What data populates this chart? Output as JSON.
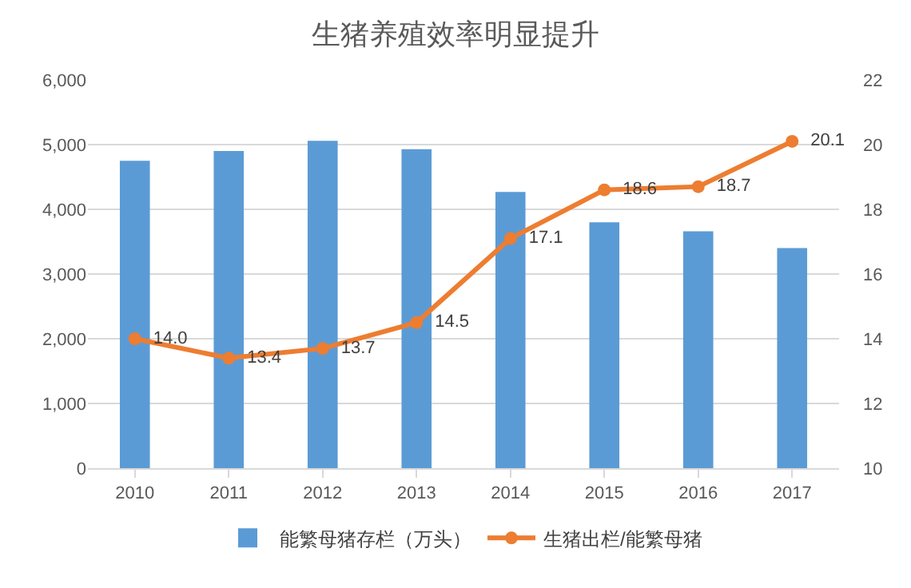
{
  "chart_data": {
    "type": "bar",
    "title": "生猪养殖效率明显提升",
    "categories": [
      "2010",
      "2011",
      "2012",
      "2013",
      "2014",
      "2015",
      "2016",
      "2017"
    ],
    "series": [
      {
        "name": "能繁母猪存栏（万头）",
        "color": "#5b9bd5",
        "values": [
          4750,
          4900,
          5060,
          4930,
          4270,
          3800,
          3660,
          3400
        ]
      },
      {
        "name": "生猪出栏/能繁母猪",
        "type": "line",
        "axis": "y2",
        "color": "#ed7d31",
        "marker": "circle",
        "values": [
          14.0,
          13.4,
          13.7,
          14.5,
          17.1,
          18.6,
          18.7,
          20.1
        ],
        "value_labels": [
          "14.0",
          "13.4",
          "13.7",
          "14.5",
          "17.1",
          "18.6",
          "18.7",
          "20.1"
        ]
      }
    ],
    "ylim": [
      0,
      6000
    ],
    "yticks": [
      {
        "value": 0,
        "label": "0"
      },
      {
        "value": 1000,
        "label": "1,000"
      },
      {
        "value": 2000,
        "label": "2,000"
      },
      {
        "value": 3000,
        "label": "3,000"
      },
      {
        "value": 4000,
        "label": "4,000"
      },
      {
        "value": 5000,
        "label": "5,000"
      },
      {
        "value": 6000,
        "label": "6,000"
      }
    ],
    "y2lim": [
      10,
      22
    ],
    "y2ticks": [
      10,
      12,
      14,
      16,
      18,
      20,
      22
    ],
    "grid": "y",
    "legend": "bottom"
  }
}
